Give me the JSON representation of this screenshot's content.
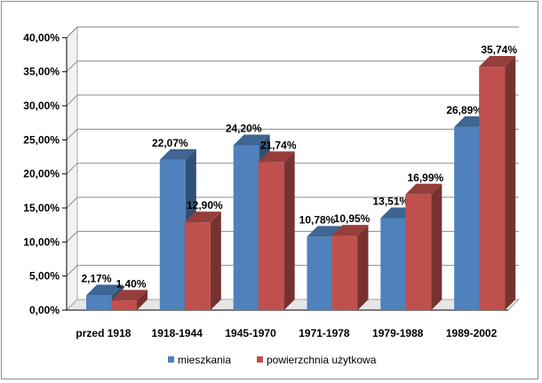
{
  "chart_data": {
    "type": "bar",
    "title": "",
    "xlabel": "",
    "ylabel": "",
    "categories": [
      "przed 1918",
      "1918-1944",
      "1945-1970",
      "1971-1978",
      "1979-1988",
      "1989-2002"
    ],
    "series": [
      {
        "name": "mieszkania",
        "color": "#4f81bd",
        "values": [
          2.17,
          22.07,
          24.2,
          10.78,
          13.51,
          26.89
        ],
        "labels": [
          "2,17%",
          "22,07%",
          "24,20%",
          "10,78%",
          "13,51%",
          "26,89%"
        ]
      },
      {
        "name": "powierzchnia użytkowa",
        "color": "#c0504d",
        "values": [
          1.4,
          12.9,
          21.74,
          10.95,
          16.99,
          35.74
        ],
        "labels": [
          "1,40%",
          "12,90%",
          "21,74%",
          "10,95%",
          "16,99%",
          "35,74%"
        ]
      }
    ],
    "ylim": [
      0,
      40
    ],
    "yticks": [
      "0,00%",
      "5,00%",
      "10,00%",
      "15,00%",
      "20,00%",
      "25,00%",
      "30,00%",
      "35,00%",
      "40,00%"
    ],
    "grid": true,
    "legend_position": "bottom"
  }
}
